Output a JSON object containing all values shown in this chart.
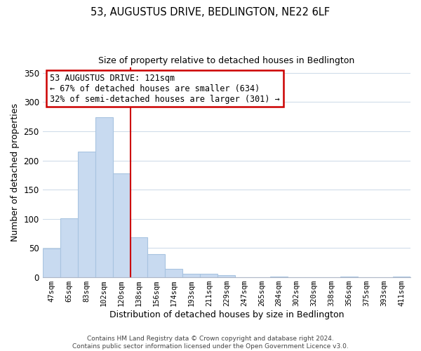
{
  "title": "53, AUGUSTUS DRIVE, BEDLINGTON, NE22 6LF",
  "subtitle": "Size of property relative to detached houses in Bedlington",
  "xlabel": "Distribution of detached houses by size in Bedlington",
  "ylabel": "Number of detached properties",
  "bar_labels": [
    "47sqm",
    "65sqm",
    "83sqm",
    "102sqm",
    "120sqm",
    "138sqm",
    "156sqm",
    "174sqm",
    "193sqm",
    "211sqm",
    "229sqm",
    "247sqm",
    "265sqm",
    "284sqm",
    "302sqm",
    "320sqm",
    "338sqm",
    "356sqm",
    "375sqm",
    "393sqm",
    "411sqm"
  ],
  "bar_values": [
    49,
    101,
    215,
    274,
    178,
    68,
    40,
    14,
    6,
    6,
    3,
    0,
    0,
    1,
    0,
    0,
    0,
    1,
    0,
    0,
    1
  ],
  "bar_color": "#c8daf0",
  "bar_edge_color": "#a8c4e0",
  "vline_color": "#cc0000",
  "annotation_title": "53 AUGUSTUS DRIVE: 121sqm",
  "annotation_line1": "← 67% of detached houses are smaller (634)",
  "annotation_line2": "32% of semi-detached houses are larger (301) →",
  "annotation_box_color": "white",
  "annotation_box_edge": "#cc0000",
  "ylim": [
    0,
    360
  ],
  "yticks": [
    0,
    50,
    100,
    150,
    200,
    250,
    300,
    350
  ],
  "footer1": "Contains HM Land Registry data © Crown copyright and database right 2024.",
  "footer2": "Contains public sector information licensed under the Open Government Licence v3.0.",
  "grid_color": "#d0dcea",
  "spine_color": "#b0b8c8"
}
